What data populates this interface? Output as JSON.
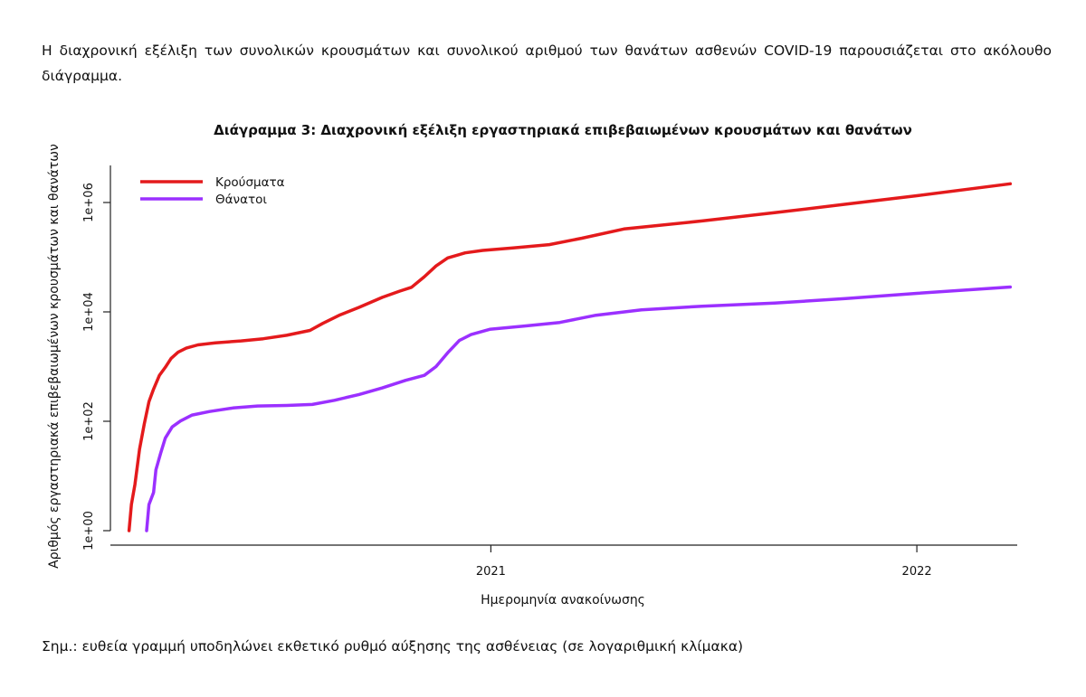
{
  "intro_text": "Η διαχρονική εξέλιξη των συνολικών κρουσμάτων και συνολικού αριθμού των θανάτων ασθενών COVID-19 παρουσιάζεται στο ακόλουθο διάγραμμα.",
  "note_text": "Σημ.: ευθεία γραμμή υποδηλώνει εκθετικό ρυθμό αύξησης της ασθένειας (σε λογαριθμική κλίμακα)",
  "chart_data": {
    "type": "line",
    "title": "Διάγραμμα 3: Διαχρονική εξέλιξη εργαστηριακά επιβεβαιωμένων κρουσμάτων και θανάτων",
    "xlabel": "Ημερομηνία ανακοίνωσης",
    "ylabel": "Αριθμός εργαστηριακά επιβεβαιωμένων κρουσμάτων και θανάτων",
    "y_scale": "log10",
    "ylim": [
      1,
      3000000
    ],
    "xlim": [
      "2020-02-10",
      "2022-03-28"
    ],
    "x_ticks": [
      {
        "date": "2021-01-01",
        "label": "2021"
      },
      {
        "date": "2022-01-01",
        "label": "2022"
      }
    ],
    "y_ticks": [
      {
        "value": 1,
        "label": "1e+00"
      },
      {
        "value": 100,
        "label": "1e+02"
      },
      {
        "value": 10000,
        "label": "1e+04"
      },
      {
        "value": 1000000,
        "label": "1e+06"
      }
    ],
    "legend_position": "top-left",
    "grid": false,
    "series": [
      {
        "name": "Κρούσματα",
        "color": "#e41a1c",
        "points": [
          [
            "2020-02-26",
            1
          ],
          [
            "2020-02-28",
            3
          ],
          [
            "2020-03-02",
            7
          ],
          [
            "2020-03-06",
            31
          ],
          [
            "2020-03-10",
            89
          ],
          [
            "2020-03-14",
            228
          ],
          [
            "2020-03-18",
            387
          ],
          [
            "2020-03-23",
            695
          ],
          [
            "2020-03-28",
            966
          ],
          [
            "2020-04-02",
            1415
          ],
          [
            "2020-04-08",
            1832
          ],
          [
            "2020-04-15",
            2170
          ],
          [
            "2020-04-25",
            2490
          ],
          [
            "2020-05-10",
            2716
          ],
          [
            "2020-06-01",
            2952
          ],
          [
            "2020-06-20",
            3227
          ],
          [
            "2020-07-10",
            3732
          ],
          [
            "2020-07-30",
            4587
          ],
          [
            "2020-08-10",
            6177
          ],
          [
            "2020-08-25",
            8860
          ],
          [
            "2020-09-10",
            12080
          ],
          [
            "2020-09-30",
            18475
          ],
          [
            "2020-10-15",
            24000
          ],
          [
            "2020-10-25",
            28200
          ],
          [
            "2020-11-05",
            44000
          ],
          [
            "2020-11-15",
            69000
          ],
          [
            "2020-11-25",
            97000
          ],
          [
            "2020-12-10",
            120000
          ],
          [
            "2020-12-25",
            133000
          ],
          [
            "2021-01-20",
            148000
          ],
          [
            "2021-02-20",
            170000
          ],
          [
            "2021-03-20",
            222000
          ],
          [
            "2021-04-25",
            328000
          ],
          [
            "2021-07-01",
            460000
          ],
          [
            "2021-09-01",
            650000
          ],
          [
            "2021-11-01",
            930000
          ],
          [
            "2022-01-01",
            1330000
          ],
          [
            "2022-03-22",
            2200000
          ]
        ]
      },
      {
        "name": "Θάνατοι",
        "color": "#9b30ff",
        "points": [
          [
            "2020-03-12",
            1
          ],
          [
            "2020-03-14",
            3
          ],
          [
            "2020-03-18",
            5
          ],
          [
            "2020-03-20",
            13
          ],
          [
            "2020-03-24",
            26
          ],
          [
            "2020-03-28",
            49
          ],
          [
            "2020-04-03",
            79
          ],
          [
            "2020-04-10",
            101
          ],
          [
            "2020-04-20",
            130
          ],
          [
            "2020-05-05",
            151
          ],
          [
            "2020-05-25",
            175
          ],
          [
            "2020-06-15",
            190
          ],
          [
            "2020-07-10",
            195
          ],
          [
            "2020-08-01",
            203
          ],
          [
            "2020-08-20",
            242
          ],
          [
            "2020-09-10",
            308
          ],
          [
            "2020-09-30",
            408
          ],
          [
            "2020-10-20",
            560
          ],
          [
            "2020-11-05",
            690
          ],
          [
            "2020-11-15",
            1000
          ],
          [
            "2020-11-25",
            1790
          ],
          [
            "2020-12-05",
            3000
          ],
          [
            "2020-12-15",
            3850
          ],
          [
            "2020-12-31",
            4790
          ],
          [
            "2021-01-31",
            5550
          ],
          [
            "2021-03-01",
            6400
          ],
          [
            "2021-04-01",
            8700
          ],
          [
            "2021-05-10",
            10900
          ],
          [
            "2021-07-01",
            12700
          ],
          [
            "2021-09-01",
            14500
          ],
          [
            "2021-11-01",
            17500
          ],
          [
            "2022-01-01",
            21800
          ],
          [
            "2022-03-22",
            28500
          ]
        ]
      }
    ]
  }
}
